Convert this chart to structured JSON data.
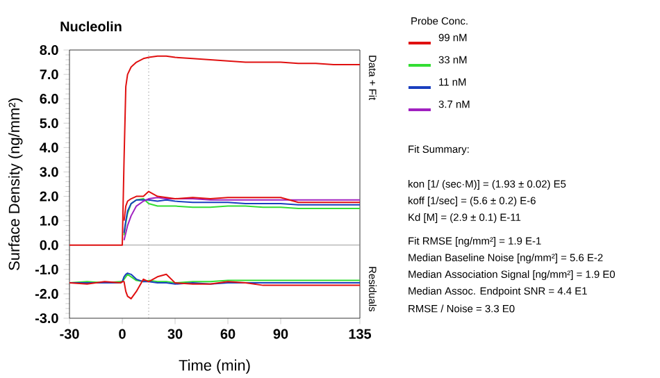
{
  "chart_data": {
    "type": "line",
    "title": "Nucleolin",
    "xlabel": "Time (min)",
    "ylabel": "Surface Density (ng/mm²)",
    "legend_title": "Probe Conc.",
    "legend": "right",
    "grid": false,
    "marker": "none",
    "line_style": "solid",
    "x": [
      -30,
      -20,
      -10,
      -1,
      0,
      1,
      2,
      3,
      5,
      8,
      12,
      15,
      20,
      25,
      30,
      40,
      50,
      60,
      70,
      80,
      90,
      100,
      110,
      120,
      135
    ],
    "xlim": [
      -30,
      135
    ],
    "xticks": [
      -30,
      0,
      30,
      60,
      90,
      135
    ],
    "ylim": [
      -3,
      8
    ],
    "yticks": [
      {
        "value": -3,
        "label": "-3.0"
      },
      {
        "value": -2,
        "label": "-2.0"
      },
      {
        "value": -1,
        "label": "-1.0"
      },
      {
        "value": 0,
        "label": "0.0"
      },
      {
        "value": 1,
        "label": "1.0"
      },
      {
        "value": 2,
        "label": "2.0"
      },
      {
        "value": 3,
        "label": "3.0"
      },
      {
        "value": 4,
        "label": "4.0"
      },
      {
        "value": 5,
        "label": "5.0"
      },
      {
        "value": 6,
        "label": "6.0"
      },
      {
        "value": 7,
        "label": "7.0"
      },
      {
        "value": 8,
        "label": "8.0"
      }
    ],
    "series": [
      {
        "name": "99 nM",
        "color": "#e01010",
        "values": [
          0,
          0,
          0,
          0,
          0,
          3.5,
          6.5,
          7.0,
          7.3,
          7.5,
          7.65,
          7.7,
          7.75,
          7.75,
          7.7,
          7.65,
          7.6,
          7.55,
          7.5,
          7.5,
          7.5,
          7.45,
          7.45,
          7.4,
          7.4
        ]
      },
      {
        "name": "33 nM",
        "color": "#33dd33",
        "values": [
          null,
          null,
          null,
          null,
          null,
          0.4,
          0.9,
          1.3,
          1.7,
          1.85,
          1.9,
          1.7,
          1.6,
          1.6,
          1.6,
          1.55,
          1.55,
          1.6,
          1.6,
          1.55,
          1.55,
          1.5,
          1.5,
          1.5,
          1.5
        ]
      },
      {
        "name": "11 nM",
        "color": "#1a3fbf",
        "values": [
          null,
          null,
          null,
          null,
          null,
          0.5,
          1.0,
          1.4,
          1.7,
          1.85,
          1.85,
          1.85,
          1.8,
          1.85,
          1.8,
          1.75,
          1.75,
          1.75,
          1.7,
          1.7,
          1.7,
          1.65,
          1.65,
          1.65,
          1.65
        ]
      },
      {
        "name": "3.7 nM",
        "color": "#a020c0",
        "values": [
          null,
          null,
          null,
          null,
          null,
          0.2,
          0.5,
          0.8,
          1.2,
          1.6,
          1.8,
          1.9,
          1.95,
          1.9,
          1.9,
          1.9,
          1.85,
          1.85,
          1.85,
          1.85,
          1.85,
          1.85,
          1.85,
          1.85,
          1.85
        ]
      },
      {
        "color": "#e01010",
        "values": [
          null,
          null,
          null,
          null,
          null,
          1.0,
          1.6,
          1.8,
          1.9,
          2.0,
          2.0,
          2.2,
          2.0,
          1.95,
          1.9,
          1.95,
          1.9,
          1.95,
          1.95,
          1.95,
          1.95,
          1.75,
          1.75,
          1.75,
          1.75
        ]
      },
      {
        "color": "#33dd33",
        "values": [
          -1.55,
          -1.5,
          -1.55,
          -1.5,
          -1.5,
          -1.4,
          -1.3,
          -1.2,
          -1.3,
          -1.45,
          -1.5,
          -1.45,
          -1.5,
          -1.5,
          -1.55,
          -1.5,
          -1.5,
          -1.45,
          -1.45,
          -1.45,
          -1.45,
          -1.45,
          -1.45,
          -1.45,
          -1.45
        ]
      },
      {
        "color": "#1a3fbf",
        "values": [
          -1.55,
          -1.55,
          null,
          -1.55,
          -1.5,
          -1.3,
          -1.2,
          -1.15,
          -1.2,
          -1.4,
          -1.5,
          -1.5,
          -1.55,
          -1.55,
          -1.6,
          -1.55,
          -1.6,
          -1.55,
          -1.55,
          -1.55,
          -1.55,
          -1.55,
          -1.55,
          -1.55,
          -1.55
        ]
      },
      {
        "color": "#e01010",
        "values": [
          -1.55,
          -1.6,
          -1.5,
          -1.55,
          -1.5,
          -1.5,
          -1.9,
          -2.1,
          -2.2,
          -1.9,
          -1.4,
          -1.5,
          -1.3,
          -1.2,
          -1.55,
          -1.6,
          -1.6,
          -1.5,
          -1.55,
          -1.65,
          -1.65,
          -1.65,
          -1.65,
          -1.65,
          -1.65
        ]
      }
    ],
    "ref_lines": [
      {
        "axis": "y",
        "value": 0,
        "color": "#808080",
        "line_style": "solid"
      },
      {
        "axis": "x",
        "value": 15,
        "color": "#202020",
        "line_style": "dotted"
      }
    ],
    "annotations": [
      "Data + Fit",
      "Residuals",
      "Fit Summary:",
      "kon  [1/ (sec·M)]  =  (1.93 ± 0.02) E5",
      "koff  [1/sec]  =  (5.6 ± 0.2) E-6",
      "Kd  [M]  =  (2.9 ± 0.1) E-11",
      "Fit RMSE [ng/mm²]  =  1.9 E-1",
      "Median Baseline Noise [ng/mm²]  =  5.6 E-2",
      "Median Association Signal [ng/mm²]  =  1.9 E0",
      "Median Assoc. Endpoint SNR  =  4.4 E1",
      "RMSE / Noise  =  3.3 E0"
    ]
  }
}
